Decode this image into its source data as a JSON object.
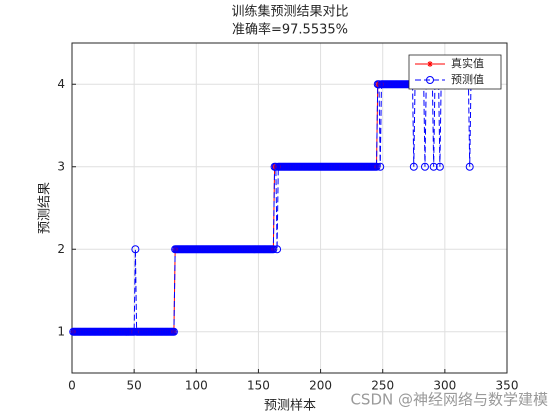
{
  "chart_data": {
    "type": "line",
    "title": "训练集预测结果对比",
    "subtitle": "准确率=97.5535%",
    "xlabel": "预测样本",
    "ylabel": "预测结果",
    "watermark": "CSDN @神经网络与数学建模",
    "xlim": [
      0,
      350
    ],
    "xticks": [
      0,
      50,
      100,
      150,
      200,
      250,
      300,
      350
    ],
    "ylim": [
      0.5,
      4.5
    ],
    "yticks": [
      1,
      2,
      3,
      4
    ],
    "grid": true,
    "legend": "northeast",
    "series": [
      {
        "name": "真实值",
        "color": "#ff0000",
        "values": [
          1,
          1,
          1,
          1,
          1,
          1,
          1,
          1,
          1,
          1,
          1,
          1,
          1,
          1,
          1,
          1,
          1,
          1,
          1,
          1,
          1,
          1,
          1,
          1,
          1,
          1,
          1,
          1,
          1,
          1,
          1,
          1,
          1,
          1,
          1,
          1,
          1,
          1,
          1,
          1,
          1,
          1,
          1,
          1,
          1,
          1,
          1,
          1,
          1,
          1,
          1,
          1,
          1,
          1,
          1,
          1,
          1,
          1,
          1,
          1,
          1,
          1,
          1,
          1,
          1,
          1,
          1,
          1,
          1,
          1,
          1,
          1,
          1,
          1,
          1,
          1,
          1,
          1,
          1,
          1,
          1,
          1,
          2,
          2,
          2,
          2,
          2,
          2,
          2,
          2,
          2,
          2,
          2,
          2,
          2,
          2,
          2,
          2,
          2,
          2,
          2,
          2,
          2,
          2,
          2,
          2,
          2,
          2,
          2,
          2,
          2,
          2,
          2,
          2,
          2,
          2,
          2,
          2,
          2,
          2,
          2,
          2,
          2,
          2,
          2,
          2,
          2,
          2,
          2,
          2,
          2,
          2,
          2,
          2,
          2,
          2,
          2,
          2,
          2,
          2,
          2,
          2,
          2,
          2,
          2,
          2,
          2,
          2,
          2,
          2,
          2,
          2,
          2,
          2,
          2,
          2,
          2,
          2,
          2,
          2,
          2,
          2,
          3,
          3,
          3,
          3,
          3,
          3,
          3,
          3,
          3,
          3,
          3,
          3,
          3,
          3,
          3,
          3,
          3,
          3,
          3,
          3,
          3,
          3,
          3,
          3,
          3,
          3,
          3,
          3,
          3,
          3,
          3,
          3,
          3,
          3,
          3,
          3,
          3,
          3,
          3,
          3,
          3,
          3,
          3,
          3,
          3,
          3,
          3,
          3,
          3,
          3,
          3,
          3,
          3,
          3,
          3,
          3,
          3,
          3,
          3,
          3,
          3,
          3,
          3,
          3,
          3,
          3,
          3,
          3,
          3,
          3,
          3,
          3,
          3,
          3,
          3,
          3,
          3,
          3,
          3,
          3,
          3,
          3,
          3,
          4,
          4,
          4,
          4,
          4,
          4,
          4,
          4,
          4,
          4,
          4,
          4,
          4,
          4,
          4,
          4,
          4,
          4,
          4,
          4,
          4,
          4,
          4,
          4,
          4,
          4,
          4,
          4,
          4,
          4,
          4,
          4,
          4,
          4,
          4,
          4,
          4,
          4,
          4,
          4,
          4,
          4,
          4,
          4,
          4,
          4,
          4,
          4,
          4,
          4,
          4,
          4,
          4,
          4,
          4,
          4,
          4,
          4,
          4,
          4,
          4,
          4,
          4,
          4,
          4,
          4,
          4,
          4,
          4,
          4,
          4,
          4,
          4,
          4,
          4,
          4,
          4,
          4,
          4,
          4,
          4,
          4
        ]
      },
      {
        "name": "预测值",
        "color": "#0000ff",
        "values": [
          1,
          1,
          1,
          1,
          1,
          1,
          1,
          1,
          1,
          1,
          1,
          1,
          1,
          1,
          1,
          1,
          1,
          1,
          1,
          1,
          1,
          1,
          1,
          1,
          1,
          1,
          1,
          1,
          1,
          1,
          1,
          1,
          1,
          1,
          1,
          1,
          1,
          1,
          1,
          1,
          1,
          1,
          1,
          1,
          1,
          1,
          1,
          1,
          1,
          1,
          2,
          1,
          1,
          1,
          1,
          1,
          1,
          1,
          1,
          1,
          1,
          1,
          1,
          1,
          1,
          1,
          1,
          1,
          1,
          1,
          1,
          1,
          1,
          1,
          1,
          1,
          1,
          1,
          1,
          1,
          1,
          1,
          2,
          2,
          2,
          2,
          2,
          2,
          2,
          2,
          2,
          2,
          2,
          2,
          2,
          2,
          2,
          2,
          2,
          2,
          2,
          2,
          2,
          2,
          2,
          2,
          2,
          2,
          2,
          2,
          2,
          2,
          2,
          2,
          2,
          2,
          2,
          2,
          2,
          2,
          2,
          2,
          2,
          2,
          2,
          2,
          2,
          2,
          2,
          2,
          2,
          2,
          2,
          2,
          2,
          2,
          2,
          2,
          2,
          2,
          2,
          2,
          2,
          2,
          2,
          2,
          2,
          2,
          2,
          2,
          2,
          2,
          2,
          2,
          2,
          2,
          2,
          2,
          2,
          2,
          2,
          2,
          3,
          3,
          2,
          3,
          3,
          3,
          3,
          3,
          3,
          3,
          3,
          3,
          3,
          3,
          3,
          3,
          3,
          3,
          3,
          3,
          3,
          3,
          3,
          3,
          3,
          3,
          3,
          3,
          3,
          3,
          3,
          3,
          3,
          3,
          3,
          3,
          3,
          3,
          3,
          3,
          3,
          3,
          3,
          3,
          3,
          3,
          3,
          3,
          3,
          3,
          3,
          3,
          3,
          3,
          3,
          3,
          3,
          3,
          3,
          3,
          3,
          3,
          3,
          3,
          3,
          3,
          3,
          3,
          3,
          3,
          3,
          3,
          3,
          3,
          3,
          3,
          3,
          3,
          3,
          3,
          3,
          3,
          3,
          4,
          4,
          3,
          4,
          4,
          4,
          4,
          4,
          4,
          4,
          4,
          4,
          4,
          4,
          4,
          4,
          4,
          4,
          4,
          4,
          4,
          4,
          4,
          4,
          4,
          4,
          4,
          4,
          4,
          3,
          4,
          4,
          4,
          4,
          4,
          4,
          4,
          4,
          3,
          4,
          4,
          4,
          4,
          4,
          4,
          3,
          4,
          4,
          4,
          4,
          3,
          4,
          4,
          4,
          4,
          4,
          4,
          4,
          4,
          4,
          4,
          4,
          4,
          4,
          4,
          4,
          4,
          4,
          4,
          4,
          4,
          4,
          4,
          4,
          3,
          4,
          4,
          4,
          4,
          4,
          4,
          4
        ]
      }
    ]
  }
}
